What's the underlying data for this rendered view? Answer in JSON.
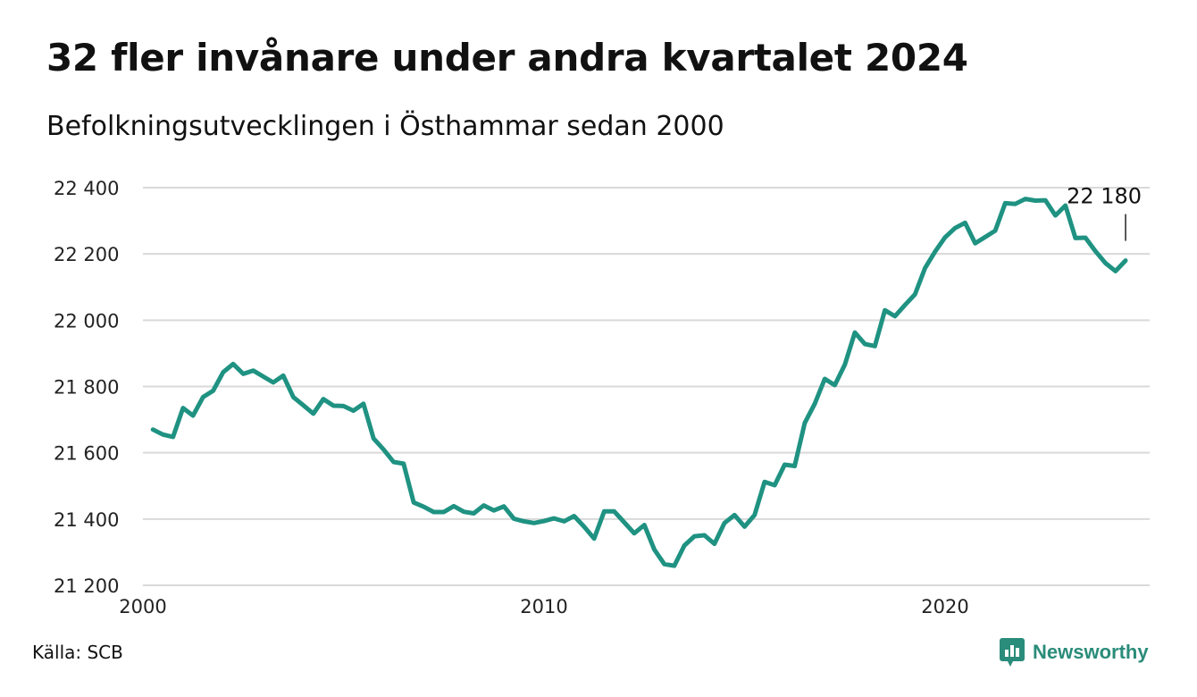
{
  "header": {
    "title": "32 fler invånare under andra kvartalet 2024",
    "subtitle": "Befolkningsutvecklingen i Östhammar sedan 2000"
  },
  "footer": {
    "source": "Källa: SCB",
    "brand": "Newsworthy",
    "brand_icon": "newsworthy-logo-icon"
  },
  "colors": {
    "line": "#1f9282",
    "grid": "#d9d9d9",
    "brand": "#2a8c7a"
  },
  "chart_data": {
    "type": "line",
    "title": "32 fler invånare under andra kvartalet 2024",
    "subtitle": "Befolkningsutvecklingen i Östhammar sedan 2000",
    "xlabel": "",
    "ylabel": "",
    "xlim": [
      2000.0,
      2025.0
    ],
    "ylim": [
      21200,
      22400
    ],
    "x_ticks": [
      {
        "value": 2000,
        "label": "2000"
      },
      {
        "value": 2010,
        "label": "2010"
      },
      {
        "value": 2020,
        "label": "2020"
      }
    ],
    "y_ticks": [
      {
        "value": 21200,
        "label": "21 200"
      },
      {
        "value": 21400,
        "label": "21 400"
      },
      {
        "value": 21600,
        "label": "21 600"
      },
      {
        "value": 21800,
        "label": "21 800"
      },
      {
        "value": 22000,
        "label": "22 000"
      },
      {
        "value": 22200,
        "label": "22 200"
      },
      {
        "value": 22400,
        "label": "22 400"
      }
    ],
    "grid": true,
    "annotation": {
      "text": "22 180",
      "target": "last point"
    },
    "series": [
      {
        "x": [
          2000.25,
          2000.5,
          2000.75,
          2001.0,
          2001.25,
          2001.5,
          2001.75,
          2002.0,
          2002.25,
          2002.5,
          2002.75,
          2003.0,
          2003.25,
          2003.5,
          2003.75,
          2004.0,
          2004.25,
          2004.5,
          2004.75,
          2005.0,
          2005.25,
          2005.5,
          2005.75,
          2006.0,
          2006.25,
          2006.5,
          2006.75,
          2007.0,
          2007.25,
          2007.5,
          2007.75,
          2008.0,
          2008.25,
          2008.5,
          2008.75,
          2009.0,
          2009.25,
          2009.5,
          2009.75,
          2010.0,
          2010.25,
          2010.5,
          2010.75,
          2011.0,
          2011.25,
          2011.5,
          2011.75,
          2012.0,
          2012.25,
          2012.5,
          2012.75,
          2013.0,
          2013.25,
          2013.5,
          2013.75,
          2014.0,
          2014.25,
          2014.5,
          2014.75,
          2015.0,
          2015.25,
          2015.5,
          2015.75,
          2016.0,
          2016.25,
          2016.5,
          2016.75,
          2017.0,
          2017.25,
          2017.5,
          2017.75,
          2018.0,
          2018.25,
          2018.5,
          2018.75,
          2019.0,
          2019.25,
          2019.5,
          2019.75,
          2020.0,
          2020.25,
          2020.5,
          2020.75,
          2021.0,
          2021.25,
          2021.5,
          2021.75,
          2022.0,
          2022.25,
          2022.5,
          2022.75,
          2023.0,
          2023.25,
          2023.5,
          2023.75,
          2024.0,
          2024.25,
          2024.5
        ],
        "values": [
          21670,
          21655,
          21648,
          21735,
          21712,
          21768,
          21787,
          21843,
          21868,
          21838,
          21848,
          21830,
          21812,
          21833,
          21768,
          21743,
          21718,
          21762,
          21742,
          21741,
          21727,
          21748,
          21643,
          21610,
          21572,
          21567,
          21450,
          21437,
          21421,
          21421,
          21439,
          21422,
          21417,
          21441,
          21426,
          21438,
          21401,
          21393,
          21388,
          21394,
          21402,
          21393,
          21409,
          21377,
          21341,
          21423,
          21423,
          21390,
          21357,
          21382,
          21308,
          21264,
          21259,
          21320,
          21348,
          21351,
          21325,
          21388,
          21412,
          21377,
          21412,
          21512,
          21502,
          21564,
          21560,
          21690,
          21748,
          21823,
          21804,
          21866,
          21963,
          21928,
          21922,
          22030,
          22012,
          22046,
          22078,
          22157,
          22207,
          22250,
          22278,
          22294,
          22232,
          22251,
          22270,
          22353,
          22351,
          22366,
          22361,
          22362,
          22316,
          22346,
          22248,
          22249,
          22208,
          22172,
          22148,
          22180
        ]
      }
    ]
  }
}
